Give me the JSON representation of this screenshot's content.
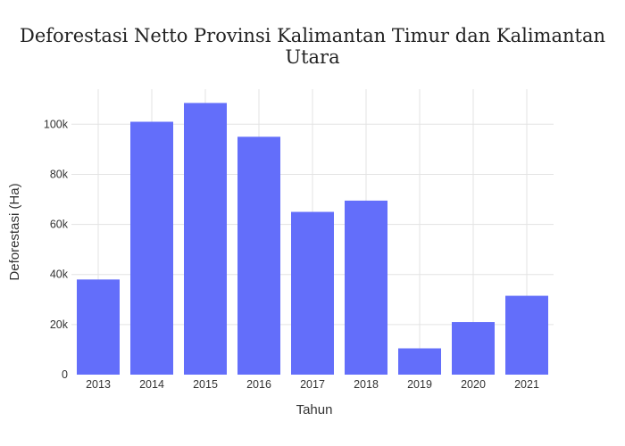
{
  "chart_data": {
    "type": "bar",
    "title": "Deforestasi Netto Provinsi Kalimantan Timur dan Kalimantan Utara",
    "xlabel": "Tahun",
    "ylabel": "Deforestasi (Ha)",
    "categories": [
      "2013",
      "2014",
      "2015",
      "2016",
      "2017",
      "2018",
      "2019",
      "2020",
      "2021"
    ],
    "values": [
      38000,
      101000,
      108500,
      95000,
      65000,
      69500,
      10500,
      21000,
      31500
    ],
    "ylim": [
      0,
      114000
    ],
    "yticks": [
      0,
      20000,
      40000,
      60000,
      80000,
      100000
    ],
    "ytick_labels": [
      "0",
      "20k",
      "40k",
      "60k",
      "80k",
      "100k"
    ],
    "grid": true,
    "bar_color": "#636efa"
  }
}
